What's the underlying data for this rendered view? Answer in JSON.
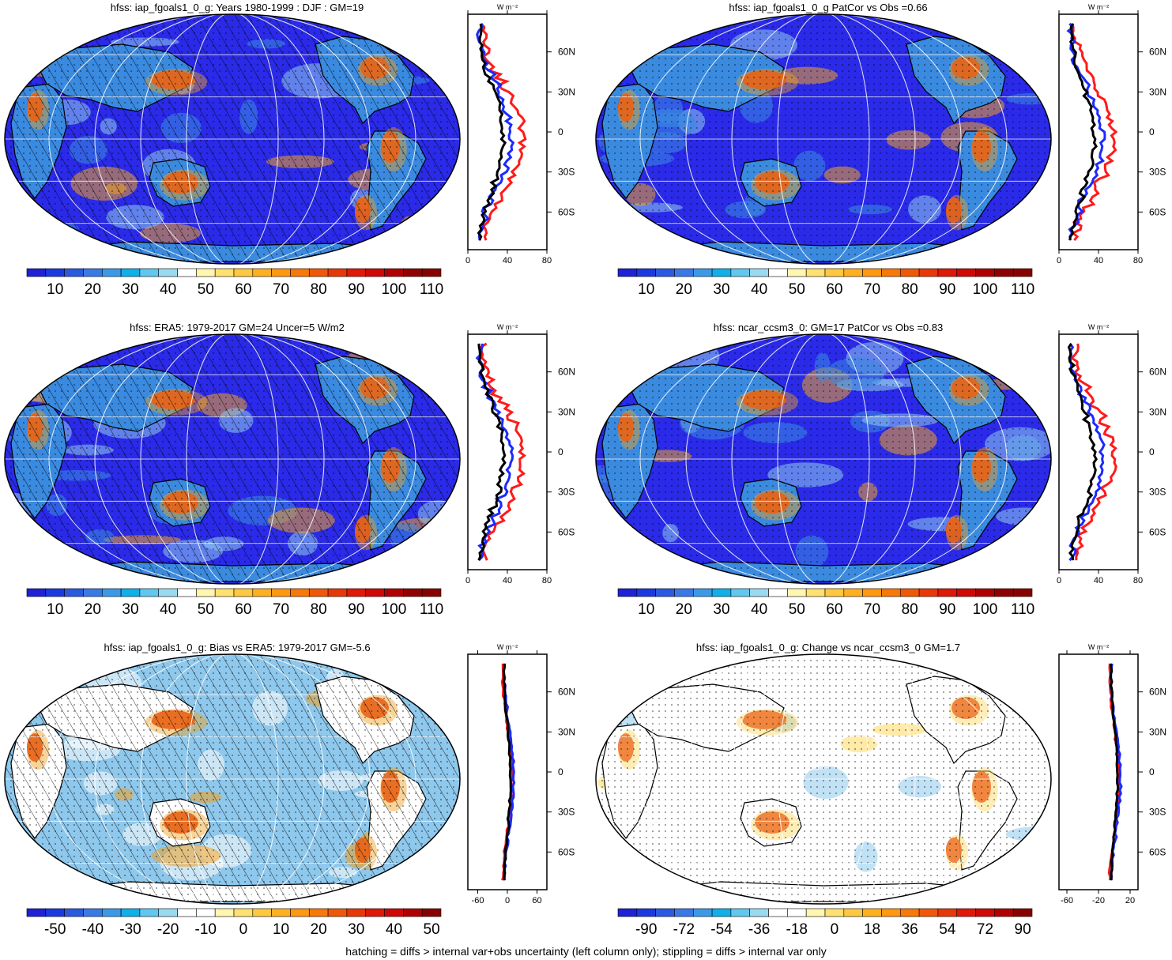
{
  "footer": "hatching = diffs > internal var+obs uncertainty (left column only); stippling = diffs > internal var only",
  "colors": {
    "ocean": "#2a2ae8",
    "land_mid": "#3a8ae0",
    "light_blue": "#8ec8ec",
    "warm": "#f0a020",
    "hot": "#e03010",
    "profile_red": "#ff1a1a",
    "profile_blue": "#1a2aff",
    "profile_black": "#000000"
  },
  "colorbars": {
    "abs": {
      "labels": [
        "10",
        "20",
        "30",
        "40",
        "50",
        "60",
        "70",
        "80",
        "90",
        "100",
        "110"
      ],
      "colors": [
        "#2020d8",
        "#1a3ae0",
        "#2a5ae0",
        "#3a7ae6",
        "#3a9ae8",
        "#10b0ea",
        "#60c8ee",
        "#9adaf0",
        "#ffffff",
        "#fff6b0",
        "#ffe070",
        "#ffc840",
        "#ffb020",
        "#ff9810",
        "#f87808",
        "#f05808",
        "#e83808",
        "#e01808",
        "#d00808",
        "#b00000",
        "#900000",
        "#880000"
      ]
    },
    "bias": {
      "labels": [
        "-50",
        "-40",
        "-30",
        "-20",
        "-10",
        "0",
        "10",
        "20",
        "30",
        "40",
        "50"
      ],
      "colors": [
        "#2020d8",
        "#1a3ae0",
        "#2a5ae0",
        "#3a7ae6",
        "#3a9ae8",
        "#10b0ea",
        "#60c8ee",
        "#9adaf0",
        "#ffffff",
        "#ffffff",
        "#fff6b0",
        "#ffe070",
        "#ffc840",
        "#ffb020",
        "#ff9810",
        "#f87808",
        "#f05808",
        "#e83808",
        "#e01808",
        "#d00808",
        "#b00000",
        "#880000"
      ]
    },
    "change": {
      "labels": [
        "-90",
        "-72",
        "-54",
        "-36",
        "-18",
        "0",
        "18",
        "36",
        "54",
        "72",
        "90"
      ],
      "colors": [
        "#2020d8",
        "#1a3ae0",
        "#2a5ae0",
        "#3a7ae6",
        "#3a9ae8",
        "#10b0ea",
        "#60c8ee",
        "#9adaf0",
        "#ffffff",
        "#ffffff",
        "#fff6b0",
        "#ffe070",
        "#ffc840",
        "#ffb020",
        "#ff9810",
        "#f87808",
        "#f05808",
        "#e83808",
        "#e01808",
        "#d00808",
        "#b00000",
        "#880000"
      ]
    }
  },
  "chart_data": [
    {
      "type": "heatmap",
      "title": "hfss: iap_fgoals1_0_g: Years 1980-1999 : DJF : GM=19",
      "colorbar": "abs",
      "hatching": true,
      "profile": {
        "unit": "W m⁻²",
        "xticks": [
          "0",
          "40",
          "80"
        ],
        "xlim": [
          0,
          80
        ],
        "lat_ticks": [
          "60N",
          "30N",
          "0",
          "30S",
          "60S"
        ]
      }
    },
    {
      "type": "heatmap",
      "title": "hfss: iap_fgoals1_0_g PatCor vs Obs =0.66",
      "colorbar": "abs",
      "hatching": false,
      "profile": {
        "unit": "W m⁻²",
        "xticks": [
          "0",
          "40",
          "80"
        ],
        "xlim": [
          0,
          80
        ],
        "lat_ticks": [
          "60N",
          "30N",
          "0",
          "30S",
          "60S"
        ]
      }
    },
    {
      "type": "heatmap",
      "title": "hfss: ERA5: 1979-2017 GM=24 Uncer=5 W/m2",
      "colorbar": "abs",
      "hatching": true,
      "profile": {
        "unit": "W m⁻²",
        "xticks": [
          "0",
          "40",
          "80"
        ],
        "xlim": [
          0,
          80
        ],
        "lat_ticks": [
          "60N",
          "30N",
          "0",
          "30S",
          "60S"
        ]
      }
    },
    {
      "type": "heatmap",
      "title": "hfss: ncar_ccsm3_0: GM=17 PatCor vs Obs =0.83",
      "colorbar": "abs",
      "hatching": false,
      "profile": {
        "unit": "W m⁻²",
        "xticks": [
          "0",
          "40",
          "80"
        ],
        "xlim": [
          0,
          80
        ],
        "lat_ticks": [
          "60N",
          "30N",
          "0",
          "30S",
          "60S"
        ]
      }
    },
    {
      "type": "heatmap",
      "title": "hfss: iap_fgoals1_0_g: Bias vs ERA5: 1979-2017 GM=-5.6",
      "colorbar": "bias",
      "hatching": true,
      "profile": {
        "unit": "W m⁻²",
        "xticks": [
          "-60",
          "0",
          "60"
        ],
        "xlim": [
          -80,
          80
        ],
        "lat_ticks": [
          "60N",
          "30N",
          "0",
          "30S",
          "60S"
        ]
      }
    },
    {
      "type": "heatmap",
      "title": "hfss: iap_fgoals1_0_g: Change vs ncar_ccsm3_0 GM=1.7",
      "colorbar": "change",
      "hatching": false,
      "profile": {
        "unit": "W m⁻²",
        "xticks": [
          "-60",
          "-20",
          "20"
        ],
        "xlim": [
          -70,
          30
        ],
        "lat_ticks": [
          "60N",
          "30N",
          "0",
          "30S",
          "60S"
        ]
      }
    }
  ]
}
